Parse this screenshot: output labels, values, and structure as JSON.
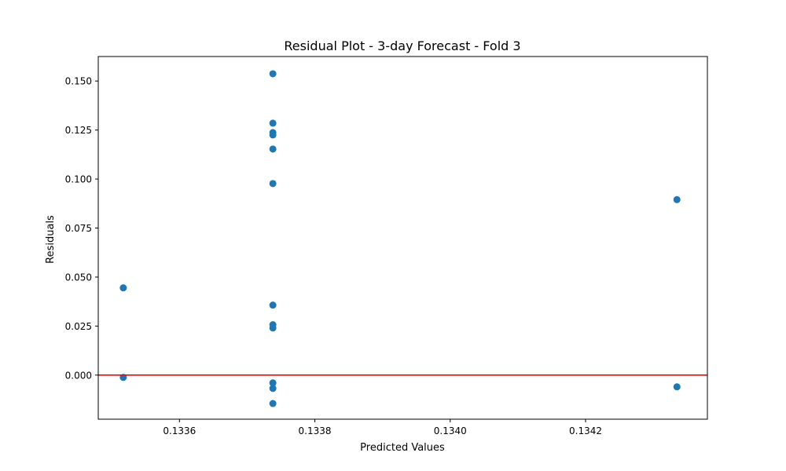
{
  "chart_data": {
    "type": "scatter",
    "title": "Residual Plot - 3-day Forecast - Fold 3",
    "xlabel": "Predicted Values",
    "ylabel": "Residuals",
    "xlim": [
      0.13348,
      0.13438
    ],
    "ylim": [
      -0.0225,
      0.1625
    ],
    "xticks": [
      {
        "value": 0.1336,
        "label": "0.1336"
      },
      {
        "value": 0.1338,
        "label": "0.1338"
      },
      {
        "value": 0.134,
        "label": "0.1340"
      },
      {
        "value": 0.1342,
        "label": "0.1342"
      }
    ],
    "yticks": [
      {
        "value": 0.0,
        "label": "0.000"
      },
      {
        "value": 0.025,
        "label": "0.025"
      },
      {
        "value": 0.05,
        "label": "0.050"
      },
      {
        "value": 0.075,
        "label": "0.075"
      },
      {
        "value": 0.1,
        "label": "0.100"
      },
      {
        "value": 0.125,
        "label": "0.125"
      },
      {
        "value": 0.15,
        "label": "0.150"
      }
    ],
    "grid": false,
    "reference_line": {
      "y": 0.0,
      "color": "#ff0000"
    },
    "marker_color": "#1f77b4",
    "points": [
      {
        "x": 0.133517,
        "y": 0.0445
      },
      {
        "x": 0.133517,
        "y": -0.0012
      },
      {
        "x": 0.133738,
        "y": 0.1537
      },
      {
        "x": 0.133738,
        "y": 0.1285
      },
      {
        "x": 0.133738,
        "y": 0.1237
      },
      {
        "x": 0.133738,
        "y": 0.1225
      },
      {
        "x": 0.133738,
        "y": 0.1153
      },
      {
        "x": 0.133738,
        "y": 0.0977
      },
      {
        "x": 0.133738,
        "y": 0.0357
      },
      {
        "x": 0.133738,
        "y": 0.0257
      },
      {
        "x": 0.133738,
        "y": 0.024
      },
      {
        "x": 0.133738,
        "y": -0.004
      },
      {
        "x": 0.133738,
        "y": -0.0068
      },
      {
        "x": 0.133738,
        "y": -0.0145
      },
      {
        "x": 0.134335,
        "y": 0.0895
      },
      {
        "x": 0.134335,
        "y": -0.006
      }
    ]
  }
}
